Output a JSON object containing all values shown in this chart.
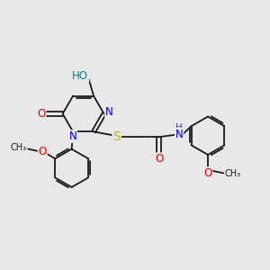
{
  "background_color": "#e8e8e8",
  "colors": {
    "C": "#1a1a1a",
    "N": "#0000ee",
    "O": "#ee0000",
    "S": "#bbbb00",
    "HO": "#008888",
    "H": "#4444aa",
    "bond": "#1a1a1a"
  },
  "figsize": [
    3.0,
    3.0
  ],
  "dpi": 100
}
